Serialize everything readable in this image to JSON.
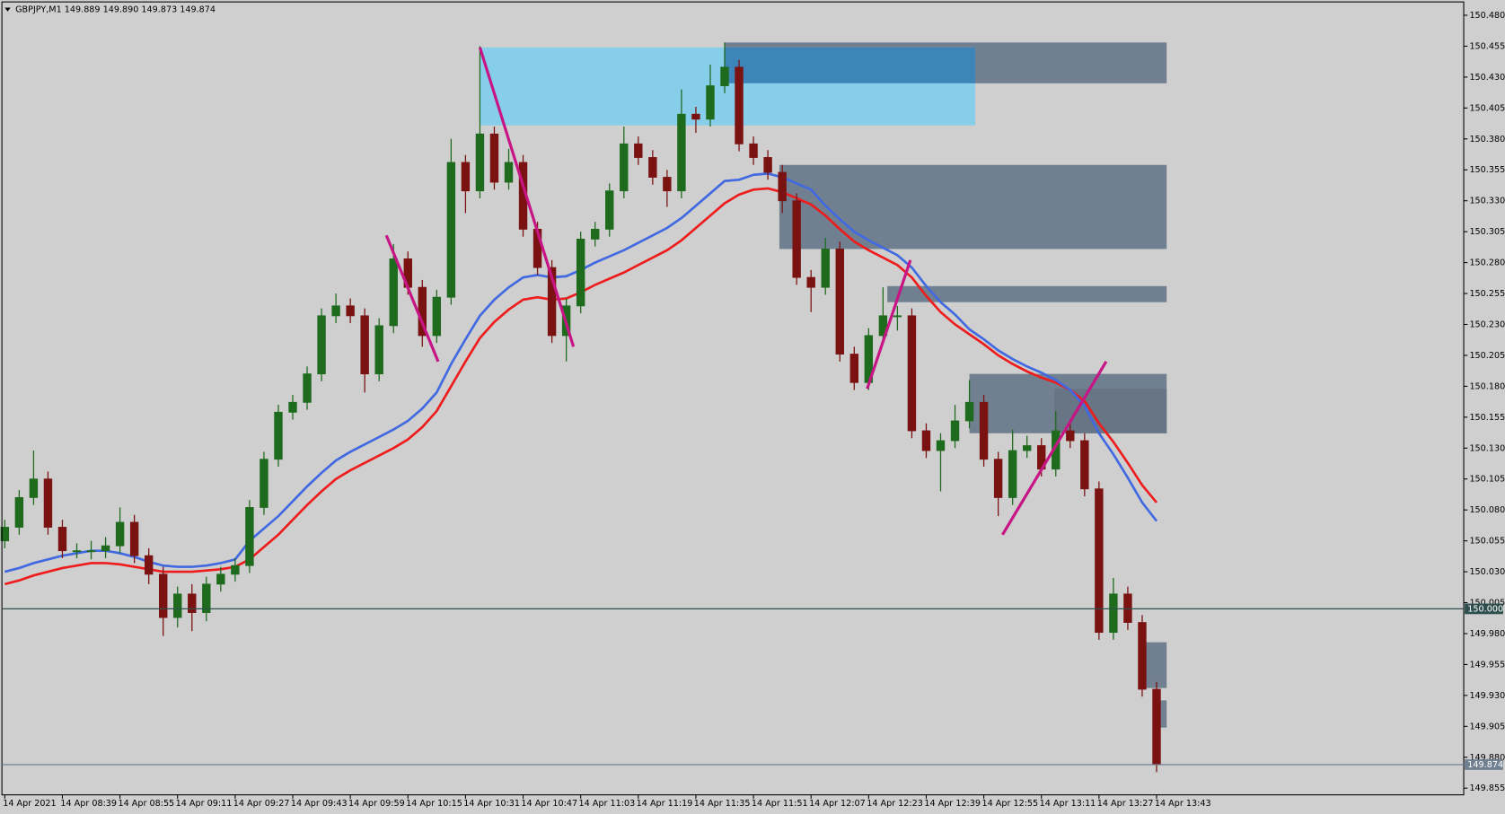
{
  "chart_data": {
    "type": "candlestick",
    "title": "GBPJPY,M1  149.889 149.890 149.873 149.874",
    "categories": [
      "14 Apr 2021",
      null,
      null,
      null,
      "14 Apr 08:39",
      null,
      null,
      null,
      "14 Apr 08:55",
      null,
      null,
      null,
      "14 Apr 09:11",
      null,
      null,
      null,
      "14 Apr 09:27",
      null,
      null,
      null,
      "14 Apr 09:43",
      null,
      null,
      null,
      "14 Apr 09:59",
      null,
      null,
      null,
      "14 Apr 10:15",
      null,
      null,
      null,
      "14 Apr 10:31",
      null,
      null,
      null,
      "14 Apr 10:47",
      null,
      null,
      null,
      "14 Apr 11:03",
      null,
      null,
      null,
      "14 Apr 11:19",
      null,
      null,
      null,
      "14 Apr 11:35",
      null,
      null,
      null,
      "14 Apr 11:51",
      null,
      null,
      null,
      "14 Apr 12:07",
      null,
      null,
      null,
      "14 Apr 12:23",
      null,
      null,
      null,
      "14 Apr 12:39",
      null,
      null,
      null,
      "14 Apr 12:55",
      null,
      null,
      null,
      "14 Apr 13:11",
      null,
      null,
      null,
      "14 Apr 13:27",
      null,
      null,
      null,
      "14 Apr 13:43"
    ],
    "open": [
      150.055,
      150.066,
      150.09,
      150.105,
      150.066,
      150.047,
      150.047,
      150.047,
      150.051,
      150.07,
      150.043,
      150.028,
      149.993,
      150.012,
      149.997,
      150.02,
      150.028,
      150.035,
      150.082,
      150.121,
      150.159,
      150.167,
      150.19,
      150.237,
      150.245,
      150.237,
      150.19,
      150.229,
      150.283,
      150.26,
      150.221,
      150.252,
      150.361,
      150.338,
      150.384,
      150.345,
      150.361,
      150.307,
      150.276,
      150.221,
      150.245,
      150.299,
      150.307,
      150.338,
      150.376,
      150.365,
      150.349,
      150.338,
      150.4,
      150.396,
      150.423,
      150.438,
      150.376,
      150.365,
      150.353,
      150.33,
      150.268,
      150.26,
      150.291,
      150.206,
      150.183,
      150.221,
      150.237,
      150.237,
      150.144,
      150.128,
      150.136,
      150.152,
      150.167,
      150.121,
      150.09,
      150.128,
      150.132,
      150.113,
      150.144,
      150.136,
      150.097,
      149.981,
      150.012,
      149.989,
      149.935
    ],
    "high": [
      150.072,
      150.096,
      150.128,
      150.111,
      150.072,
      150.053,
      150.055,
      150.058,
      150.082,
      150.076,
      150.049,
      150.034,
      150.018,
      150.02,
      150.026,
      150.034,
      150.041,
      150.088,
      150.127,
      150.165,
      150.173,
      150.196,
      150.243,
      150.255,
      150.251,
      150.243,
      150.235,
      150.295,
      150.289,
      150.266,
      150.258,
      150.38,
      150.367,
      150.455,
      150.39,
      150.372,
      150.367,
      150.313,
      150.282,
      150.251,
      150.305,
      150.313,
      150.344,
      150.39,
      150.382,
      150.371,
      150.355,
      150.42,
      150.406,
      150.44,
      150.458,
      150.444,
      150.382,
      150.371,
      150.359,
      150.336,
      150.274,
      150.3,
      150.297,
      150.212,
      150.227,
      150.26,
      150.245,
      150.243,
      150.15,
      150.142,
      150.165,
      150.185,
      150.173,
      150.127,
      150.145,
      150.14,
      150.138,
      150.16,
      150.15,
      150.142,
      150.103,
      150.025,
      150.018,
      149.995,
      149.941
    ],
    "low": [
      150.049,
      150.06,
      150.084,
      150.06,
      150.041,
      150.041,
      150.04,
      150.041,
      150.045,
      150.037,
      150.02,
      149.978,
      149.985,
      149.982,
      149.99,
      150.014,
      150.022,
      150.029,
      150.076,
      150.115,
      150.153,
      150.161,
      150.184,
      150.231,
      150.231,
      150.175,
      150.184,
      150.223,
      150.254,
      150.212,
      150.215,
      150.246,
      150.32,
      150.332,
      150.339,
      150.339,
      150.301,
      150.27,
      150.215,
      150.2,
      150.239,
      150.293,
      150.301,
      150.332,
      150.359,
      150.343,
      150.325,
      150.332,
      150.385,
      150.39,
      150.417,
      150.37,
      150.359,
      150.347,
      150.32,
      150.262,
      150.24,
      150.254,
      150.2,
      150.177,
      150.177,
      150.215,
      150.225,
      150.138,
      150.122,
      150.095,
      150.13,
      150.146,
      150.115,
      150.075,
      150.084,
      150.122,
      150.107,
      150.107,
      150.13,
      150.091,
      149.975,
      149.975,
      149.983,
      149.929,
      149.868
    ],
    "close": [
      150.066,
      150.09,
      150.105,
      150.066,
      150.047,
      150.047,
      150.047,
      150.051,
      150.07,
      150.043,
      150.028,
      149.993,
      150.012,
      149.997,
      150.02,
      150.028,
      150.035,
      150.082,
      150.121,
      150.159,
      150.167,
      150.19,
      150.237,
      150.245,
      150.237,
      150.19,
      150.229,
      150.283,
      150.26,
      150.221,
      150.252,
      150.361,
      150.338,
      150.384,
      150.345,
      150.361,
      150.307,
      150.276,
      150.221,
      150.245,
      150.299,
      150.307,
      150.338,
      150.376,
      150.365,
      150.349,
      150.338,
      150.4,
      150.396,
      150.423,
      150.438,
      150.376,
      150.365,
      150.353,
      150.33,
      150.268,
      150.26,
      150.291,
      150.206,
      150.183,
      150.221,
      150.237,
      150.237,
      150.144,
      150.128,
      150.136,
      150.152,
      150.167,
      150.121,
      150.09,
      150.128,
      150.132,
      150.113,
      150.144,
      150.136,
      150.097,
      149.981,
      150.012,
      149.989,
      149.935,
      149.874
    ],
    "up_color": "#1e6b1e",
    "down_color": "#7a1212",
    "series": [
      {
        "color": "#ee1c1c",
        "values": [
          150.02,
          150.023,
          150.027,
          150.03,
          150.033,
          150.035,
          150.037,
          150.037,
          150.036,
          150.034,
          150.032,
          150.03,
          150.03,
          150.03,
          150.031,
          150.032,
          150.034,
          150.04,
          150.05,
          150.06,
          150.072,
          150.084,
          150.095,
          150.105,
          150.112,
          150.118,
          150.124,
          150.13,
          150.137,
          150.147,
          150.16,
          150.18,
          150.2,
          150.219,
          150.232,
          150.242,
          150.25,
          150.252,
          150.25,
          150.251,
          150.256,
          150.262,
          150.267,
          150.272,
          150.278,
          150.284,
          150.29,
          150.298,
          150.308,
          150.318,
          150.328,
          150.335,
          150.339,
          150.34,
          150.337,
          150.332,
          150.327,
          150.318,
          150.307,
          150.297,
          150.29,
          150.284,
          150.278,
          150.268,
          150.253,
          150.24,
          150.23,
          150.222,
          150.214,
          150.205,
          150.198,
          150.192,
          150.187,
          150.183,
          150.177,
          150.168,
          150.15,
          150.135,
          150.118,
          150.1,
          150.086
        ]
      },
      {
        "color": "#4169e1",
        "values": [
          150.03,
          150.033,
          150.037,
          150.04,
          150.043,
          150.045,
          150.047,
          150.047,
          150.045,
          150.042,
          150.038,
          150.035,
          150.034,
          150.034,
          150.035,
          150.037,
          150.04,
          150.055,
          150.065,
          150.075,
          150.087,
          150.099,
          150.11,
          150.12,
          150.127,
          150.133,
          150.139,
          150.145,
          150.152,
          150.162,
          150.175,
          150.198,
          150.218,
          150.237,
          150.25,
          150.26,
          150.268,
          150.27,
          150.268,
          150.269,
          150.274,
          150.28,
          150.285,
          150.29,
          150.296,
          150.302,
          150.308,
          150.316,
          150.326,
          150.336,
          150.346,
          150.347,
          150.351,
          150.352,
          150.349,
          150.344,
          150.339,
          150.326,
          150.315,
          150.305,
          150.298,
          150.292,
          150.286,
          150.276,
          150.261,
          150.248,
          150.238,
          150.226,
          150.218,
          150.209,
          150.202,
          150.196,
          150.191,
          150.185,
          150.177,
          150.164,
          150.142,
          150.125,
          150.106,
          150.086,
          150.071
        ]
      }
    ],
    "zones": [
      {
        "range": [
          150.425,
          150.458
        ],
        "x_range": [
          50,
          80.7
        ],
        "color": "#708090"
      },
      {
        "range": [
          150.391,
          150.454
        ],
        "x_range": [
          33,
          67.4
        ],
        "color": "#87ceeb"
      },
      {
        "range": [
          150.425,
          150.454
        ],
        "x_range": [
          50,
          67.4
        ],
        "color": "#3d85b8"
      },
      {
        "range": [
          150.291,
          150.359
        ],
        "x_range": [
          53.8,
          80.7
        ],
        "color": "#708090"
      },
      {
        "range": [
          150.248,
          150.261
        ],
        "x_range": [
          61.3,
          80.7
        ],
        "color": "#708090"
      },
      {
        "range": [
          150.142,
          150.19
        ],
        "x_range": [
          67,
          80.7
        ],
        "color": "#708090"
      },
      {
        "range": [
          150.142,
          150.178
        ],
        "x_range": [
          72.9,
          80.7
        ],
        "color": "#687585"
      },
      {
        "range": [
          149.936,
          149.973
        ],
        "x_range": [
          78.9,
          80.7
        ],
        "color": "#708090"
      },
      {
        "range": [
          149.904,
          149.926
        ],
        "x_range": [
          80,
          80.7
        ],
        "color": "#708090"
      }
    ],
    "lines": [
      {
        "x": [
          26.5,
          30.1
        ],
        "y": [
          150.302,
          150.2
        ],
        "color": "#c71585"
      },
      {
        "x": [
          33,
          39.5
        ],
        "y": [
          150.454,
          150.212
        ],
        "color": "#c71585"
      },
      {
        "x": [
          59.9,
          62.9
        ],
        "y": [
          150.178,
          150.282
        ],
        "color": "#c71585"
      },
      {
        "x": [
          69.3,
          76.5
        ],
        "y": [
          150.06,
          150.2
        ],
        "color": "#c71585"
      }
    ],
    "levels": [
      {
        "value": 150.0,
        "label": "150.000",
        "color": "#2f4f4f"
      },
      {
        "value": 149.874,
        "label": "149.874",
        "color": "#708090"
      }
    ],
    "ylim": [
      149.8496,
      150.4908
    ],
    "yticks": [
      {
        "value": 150.48,
        "label": "150.480"
      },
      {
        "value": 150.455,
        "label": "150.455"
      },
      {
        "value": 150.43,
        "label": "150.430"
      },
      {
        "value": 150.405,
        "label": "150.405"
      },
      {
        "value": 150.38,
        "label": "150.380"
      },
      {
        "value": 150.355,
        "label": "150.355"
      },
      {
        "value": 150.33,
        "label": "150.330"
      },
      {
        "value": 150.305,
        "label": "150.305"
      },
      {
        "value": 150.28,
        "label": "150.280"
      },
      {
        "value": 150.255,
        "label": "150.255"
      },
      {
        "value": 150.23,
        "label": "150.230"
      },
      {
        "value": 150.205,
        "label": "150.205"
      },
      {
        "value": 150.18,
        "label": "150.180"
      },
      {
        "value": 150.155,
        "label": "150.155"
      },
      {
        "value": 150.13,
        "label": "150.130"
      },
      {
        "value": 150.105,
        "label": "150.105"
      },
      {
        "value": 150.08,
        "label": "150.080"
      },
      {
        "value": 150.055,
        "label": "150.055"
      },
      {
        "value": 150.03,
        "label": "150.030"
      },
      {
        "value": 150.005,
        "label": "150.005"
      },
      {
        "value": 149.98,
        "label": "149.980"
      },
      {
        "value": 149.955,
        "label": "149.955"
      },
      {
        "value": 149.93,
        "label": "149.930"
      },
      {
        "value": 149.905,
        "label": "149.905"
      },
      {
        "value": 149.88,
        "label": "149.880"
      },
      {
        "value": 149.855,
        "label": "149.855"
      }
    ],
    "grid": false
  }
}
